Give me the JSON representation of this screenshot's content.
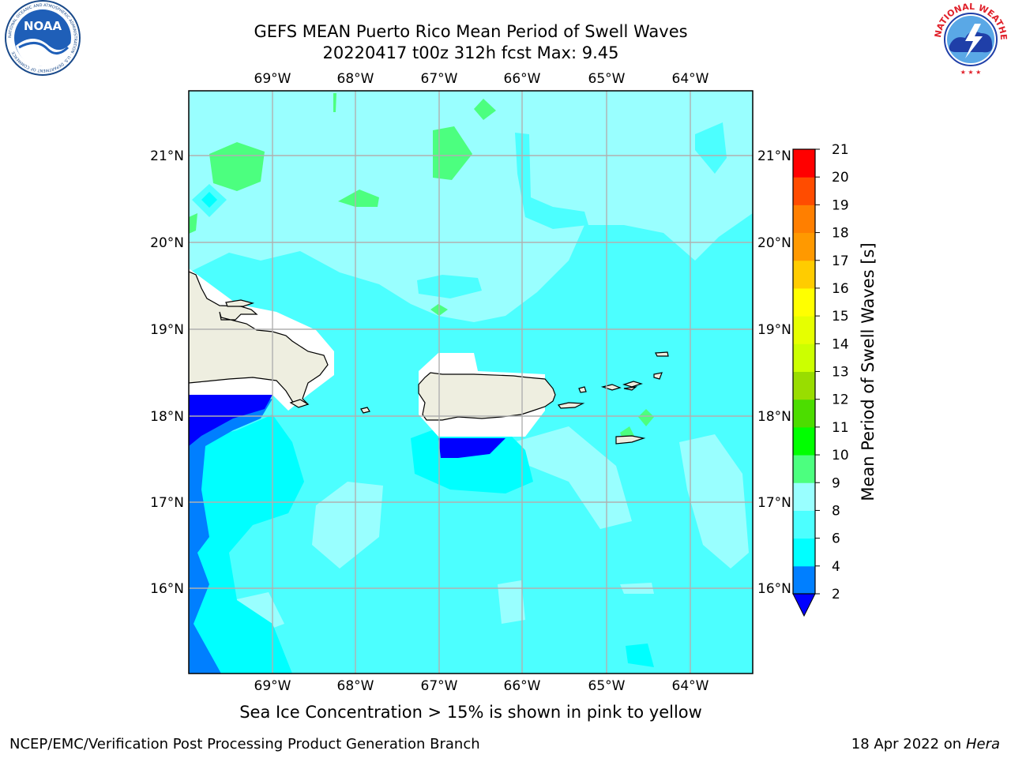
{
  "title": {
    "line1": "GEFS MEAN Puerto Rico Mean Period of Swell Waves",
    "line2": "20220417 t00z 312h fcst   Max: 9.45"
  },
  "logos": {
    "left": "NOAA",
    "left_ring_text": "NATIONAL OCEANIC AND ATMOSPHERIC ADMINISTRATION · U.S. DEPARTMENT OF COMMERCE",
    "right_ring_text": "NATIONAL WEATHER SERVICE"
  },
  "map": {
    "lon_labels": [
      "69°W",
      "68°W",
      "67°W",
      "66°W",
      "65°W",
      "64°W"
    ],
    "lat_labels": [
      "21°N",
      "20°N",
      "19°N",
      "18°N",
      "17°N",
      "16°N"
    ],
    "gridlines": true
  },
  "colorbar": {
    "label": "Mean Period of Swell Waves [s]",
    "ticks": [
      "2",
      "4",
      "6",
      "8",
      "9",
      "10",
      "11",
      "12",
      "13",
      "14",
      "15",
      "16",
      "17",
      "18",
      "19",
      "20",
      "21"
    ],
    "colors": [
      "#0000ff",
      "#007fff",
      "#00ffff",
      "#4cffff",
      "#99ffff",
      "#4cff7f",
      "#00ff00",
      "#4cdd00",
      "#99dd00",
      "#ccff00",
      "#e6ff00",
      "#ffff00",
      "#ffcc00",
      "#ff9900",
      "#ff7f00",
      "#ff4c00",
      "#ff0000"
    ],
    "extend_min_color": "#0000ff"
  },
  "colors": {
    "land": "#eeeee0",
    "background_field": "#99ffff"
  },
  "caption": "Sea Ice Concentration > 15% is shown in pink to yellow",
  "footer": {
    "left": "NCEP/EMC/Verification Post Processing Product Generation Branch",
    "right_date": "18 Apr 2022 on",
    "right_host": "Hera"
  }
}
